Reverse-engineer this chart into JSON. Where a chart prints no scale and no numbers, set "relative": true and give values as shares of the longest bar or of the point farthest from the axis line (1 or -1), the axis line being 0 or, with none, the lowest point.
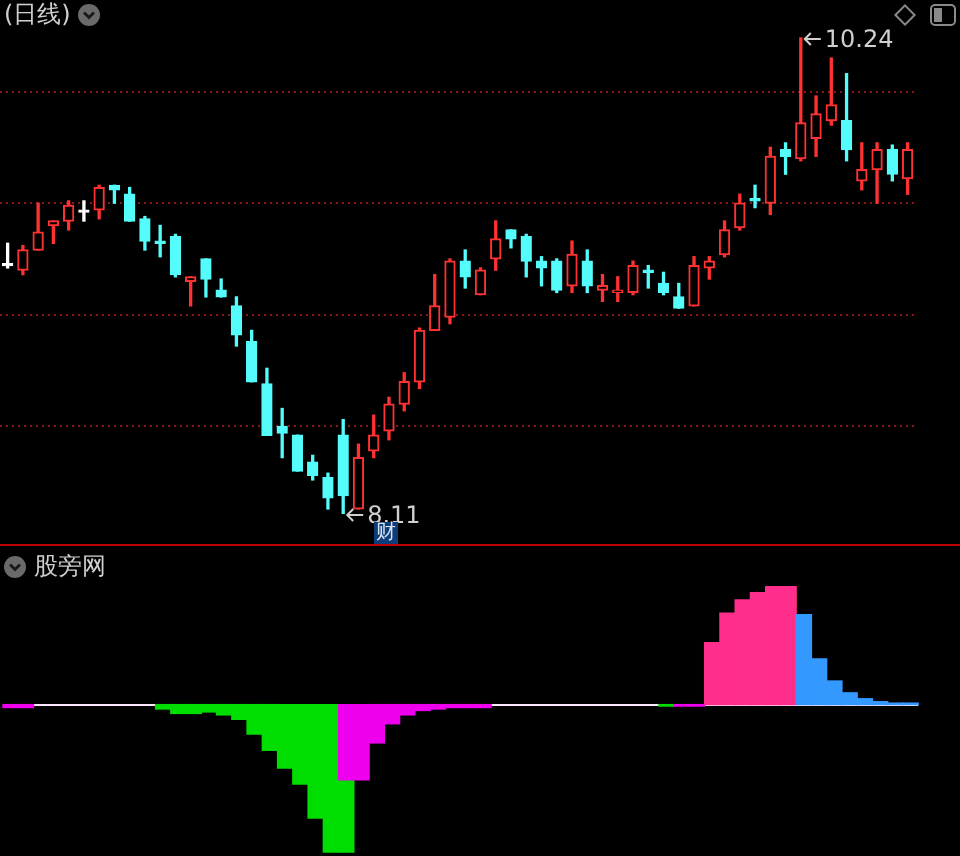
{
  "chart_data": [
    {
      "type": "candlestick",
      "title": "(日线)",
      "categories": [
        null,
        null,
        null,
        null,
        null,
        null,
        null,
        null,
        null,
        null,
        null,
        null,
        null,
        null,
        null,
        null,
        null,
        null,
        null,
        null,
        null,
        null,
        null,
        null,
        null,
        null,
        null,
        null,
        null,
        null,
        null,
        null,
        null,
        null,
        null,
        null,
        null,
        null,
        null,
        null,
        null,
        null,
        null,
        null,
        null,
        null,
        null,
        null,
        null,
        null,
        null,
        null,
        null,
        null,
        null,
        null,
        null,
        null,
        null,
        null
      ],
      "ohlc": [
        [
          9.22,
          9.32,
          9.21,
          9.22
        ],
        [
          9.2,
          9.31,
          9.18,
          9.29
        ],
        [
          9.29,
          9.5,
          9.29,
          9.37
        ],
        [
          9.4,
          9.42,
          9.32,
          9.42
        ],
        [
          9.42,
          9.51,
          9.38,
          9.49
        ],
        [
          9.46,
          9.51,
          9.42,
          9.46
        ],
        [
          9.47,
          9.58,
          9.43,
          9.57
        ],
        [
          9.58,
          9.58,
          9.5,
          9.56
        ],
        [
          9.54,
          9.57,
          9.42,
          9.42
        ],
        [
          9.43,
          9.44,
          9.29,
          9.33
        ],
        [
          9.33,
          9.4,
          9.26,
          9.32
        ],
        [
          9.35,
          9.36,
          9.17,
          9.18
        ],
        [
          9.15,
          9.17,
          9.04,
          9.17
        ],
        [
          9.25,
          9.25,
          9.08,
          9.16
        ],
        [
          9.11,
          9.16,
          9.08,
          9.08
        ],
        [
          9.04,
          9.08,
          8.86,
          8.91
        ],
        [
          8.88,
          8.93,
          8.7,
          8.7
        ],
        [
          8.69,
          8.76,
          8.46,
          8.46
        ],
        [
          8.5,
          8.58,
          8.36,
          8.47
        ],
        [
          8.46,
          8.46,
          8.3,
          8.3
        ],
        [
          8.34,
          8.37,
          8.26,
          8.28
        ],
        [
          8.27,
          8.29,
          8.13,
          8.18
        ],
        [
          8.46,
          8.53,
          8.11,
          8.19
        ],
        [
          8.13,
          8.42,
          8.13,
          8.36
        ],
        [
          8.39,
          8.55,
          8.36,
          8.46
        ],
        [
          8.48,
          8.63,
          8.44,
          8.6
        ],
        [
          8.6,
          8.74,
          8.57,
          8.7
        ],
        [
          8.7,
          8.94,
          8.67,
          8.93
        ],
        [
          8.93,
          9.18,
          8.93,
          9.04
        ],
        [
          8.99,
          9.25,
          8.96,
          9.24
        ],
        [
          9.24,
          9.29,
          9.12,
          9.17
        ],
        [
          9.09,
          9.21,
          9.09,
          9.2
        ],
        [
          9.25,
          9.42,
          9.2,
          9.34
        ],
        [
          9.38,
          9.38,
          9.3,
          9.34
        ],
        [
          9.35,
          9.36,
          9.17,
          9.24
        ],
        [
          9.24,
          9.26,
          9.13,
          9.21
        ],
        [
          9.24,
          9.25,
          9.1,
          9.11
        ],
        [
          9.13,
          9.33,
          9.1,
          9.27
        ],
        [
          9.24,
          9.29,
          9.1,
          9.13
        ],
        [
          9.11,
          9.18,
          9.06,
          9.13
        ],
        [
          9.1,
          9.17,
          9.06,
          9.11
        ],
        [
          9.1,
          9.24,
          9.09,
          9.22
        ],
        [
          9.2,
          9.22,
          9.12,
          9.19
        ],
        [
          9.14,
          9.19,
          9.09,
          9.1
        ],
        [
          9.08,
          9.14,
          9.03,
          9.03
        ],
        [
          9.04,
          9.26,
          9.04,
          9.22
        ],
        [
          9.21,
          9.26,
          9.16,
          9.24
        ],
        [
          9.27,
          9.42,
          9.26,
          9.38
        ],
        [
          9.39,
          9.54,
          9.38,
          9.5
        ],
        [
          9.52,
          9.58,
          9.48,
          9.51
        ],
        [
          9.5,
          9.75,
          9.45,
          9.71
        ],
        [
          9.74,
          9.77,
          9.63,
          9.71
        ],
        [
          9.7,
          10.24,
          9.69,
          9.86
        ],
        [
          9.79,
          9.98,
          9.71,
          9.9
        ],
        [
          9.87,
          10.15,
          9.85,
          9.94
        ],
        [
          9.87,
          10.08,
          9.69,
          9.74
        ],
        [
          9.6,
          9.77,
          9.56,
          9.65
        ],
        [
          9.65,
          9.77,
          9.5,
          9.74
        ],
        [
          9.74,
          9.76,
          9.6,
          9.63
        ],
        [
          9.61,
          9.77,
          9.54,
          9.74
        ]
      ],
      "colors": [
        "#ffffff",
        "#ff3232",
        "#ff3232",
        "#ff3232",
        "#ff3232",
        "#ffffff",
        "#ff3232",
        "#54fcfc",
        "#54fcfc",
        "#54fcfc",
        "#54fcfc",
        "#54fcfc",
        "#ff3232",
        "#54fcfc",
        "#54fcfc",
        "#54fcfc",
        "#54fcfc",
        "#54fcfc",
        "#54fcfc",
        "#54fcfc",
        "#54fcfc",
        "#54fcfc",
        "#54fcfc",
        "#ff3232",
        "#ff3232",
        "#ff3232",
        "#ff3232",
        "#ff3232",
        "#ff3232",
        "#ff3232",
        "#54fcfc",
        "#ff3232",
        "#ff3232",
        "#54fcfc",
        "#54fcfc",
        "#54fcfc",
        "#54fcfc",
        "#ff3232",
        "#54fcfc",
        "#ff3232",
        "#ff3232",
        "#ff3232",
        "#54fcfc",
        "#54fcfc",
        "#54fcfc",
        "#ff3232",
        "#ff3232",
        "#ff3232",
        "#ff3232",
        "#54fcfc",
        "#ff3232",
        "#54fcfc",
        "#ff3232",
        "#ff3232",
        "#ff3232",
        "#54fcfc",
        "#ff3232",
        "#ff3232",
        "#54fcfc",
        "#ff3232"
      ],
      "yticks": [
        {
          "value": 10,
          "label": null
        },
        {
          "value": 9.5,
          "label": null
        },
        {
          "value": 9,
          "label": null
        },
        {
          "value": 8.5,
          "label": null
        }
      ],
      "grid": "y",
      "tick_labels": false,
      "annotations": [
        "10.24",
        "8.11",
        "财"
      ]
    },
    {
      "type": "bar",
      "title": "股旁网",
      "relative": true,
      "tick_labels": false,
      "categories": [
        null,
        null,
        null,
        null,
        null,
        null,
        null,
        null,
        null,
        null,
        null,
        null,
        null,
        null,
        null,
        null,
        null,
        null,
        null,
        null,
        null,
        null,
        null,
        null,
        null,
        null,
        null,
        null,
        null,
        null,
        null,
        null,
        null,
        null,
        null,
        null,
        null,
        null,
        null,
        null,
        null,
        null,
        null,
        null,
        null,
        null,
        null,
        null,
        null,
        null,
        null,
        null,
        null,
        null,
        null,
        null,
        null,
        null,
        null,
        null
      ],
      "ref_lines": [
        {
          "axis": "y",
          "value": 0,
          "color": "#ffe6ff"
        }
      ],
      "series": [
        {
          "color": "#00dd00",
          "values": [
            null,
            null,
            null,
            null,
            null,
            null,
            null,
            null,
            null,
            null,
            -0.03,
            -0.06,
            -0.06,
            -0.05,
            -0.07,
            -0.1,
            -0.2,
            -0.31,
            -0.43,
            -0.54,
            -0.77,
            -1,
            -1,
            null,
            null,
            null,
            null,
            null,
            null,
            null,
            null,
            null,
            null,
            null,
            null,
            null,
            null,
            null,
            null,
            null,
            null,
            null,
            null,
            -0.01,
            null,
            null,
            null,
            null,
            null,
            null,
            null,
            null,
            null,
            null,
            null,
            null,
            null,
            null,
            null,
            null
          ]
        },
        {
          "color": "#ee00ee",
          "values": [
            -0.02,
            -0.02,
            null,
            null,
            null,
            null,
            null,
            null,
            null,
            null,
            null,
            null,
            null,
            null,
            null,
            null,
            null,
            null,
            null,
            null,
            null,
            null,
            -0.51,
            -0.51,
            -0.26,
            -0.13,
            -0.07,
            -0.04,
            -0.03,
            -0.02,
            -0.02,
            -0.02,
            null,
            null,
            null,
            null,
            null,
            null,
            null,
            null,
            null,
            null,
            null,
            null,
            -0.01,
            -0.01,
            null,
            null,
            null,
            null,
            null,
            null,
            null,
            null,
            null,
            null,
            null,
            null,
            null,
            null
          ]
        },
        {
          "color": "#ff2d8c",
          "values": [
            null,
            null,
            null,
            null,
            null,
            null,
            null,
            null,
            null,
            null,
            null,
            null,
            null,
            null,
            null,
            null,
            null,
            null,
            null,
            null,
            null,
            null,
            null,
            null,
            null,
            null,
            null,
            null,
            null,
            null,
            null,
            null,
            null,
            null,
            null,
            null,
            null,
            null,
            null,
            null,
            null,
            null,
            null,
            null,
            null,
            null,
            0.42,
            0.62,
            0.71,
            0.76,
            0.8,
            0.8,
            null,
            null,
            null,
            null,
            null,
            null,
            null,
            null
          ]
        },
        {
          "color": "#3399ff",
          "values": [
            null,
            null,
            null,
            null,
            null,
            null,
            null,
            null,
            null,
            null,
            null,
            null,
            null,
            null,
            null,
            null,
            null,
            null,
            null,
            null,
            null,
            null,
            null,
            null,
            null,
            null,
            null,
            null,
            null,
            null,
            null,
            null,
            null,
            null,
            null,
            null,
            null,
            null,
            null,
            null,
            null,
            null,
            null,
            null,
            null,
            null,
            null,
            null,
            null,
            null,
            null,
            null,
            0.61,
            0.31,
            0.16,
            0.08,
            0.04,
            0.02,
            0.01,
            0.01
          ]
        }
      ]
    }
  ]
}
